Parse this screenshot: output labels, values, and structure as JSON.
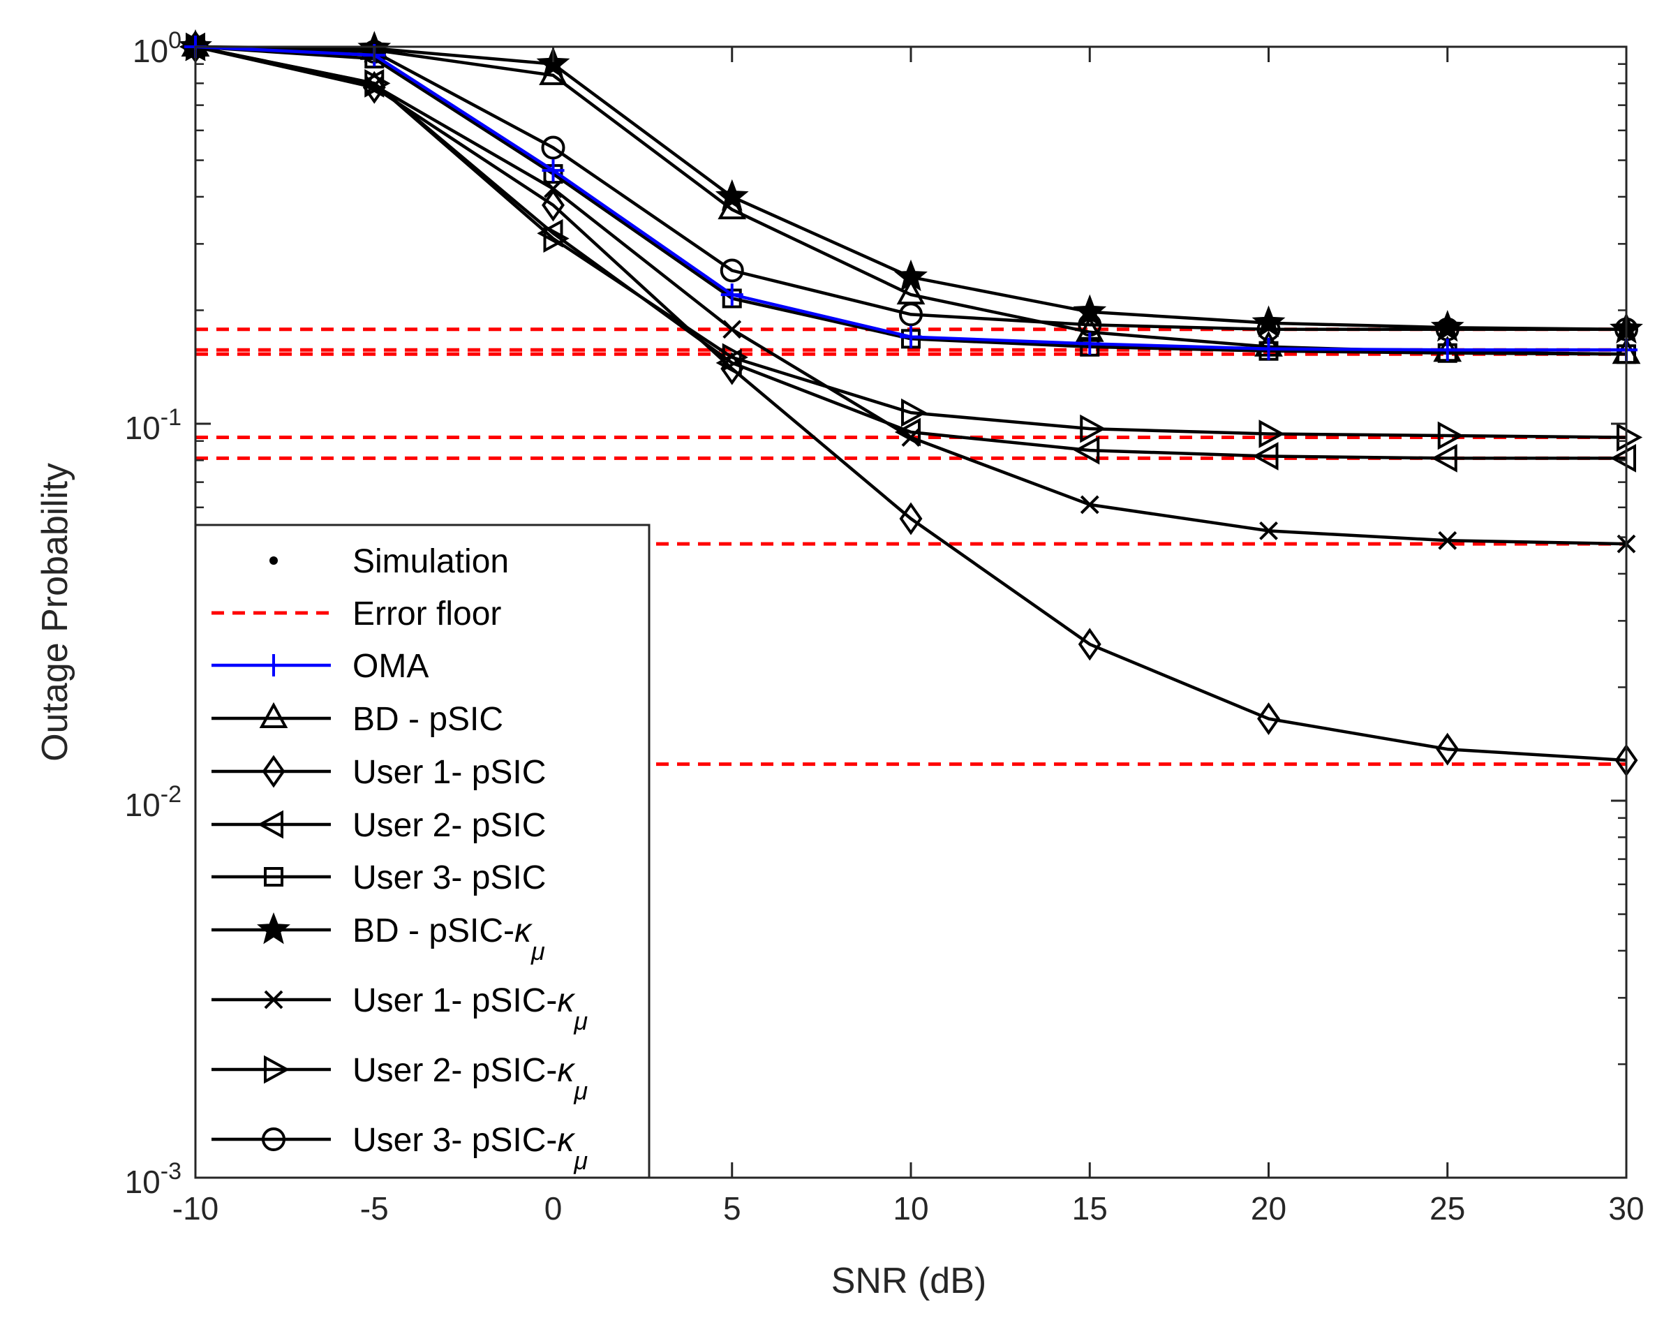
{
  "chart_data": {
    "type": "line",
    "xlabel": "SNR (dB)",
    "ylabel": "Outage Probability",
    "xlim": [
      -10,
      30
    ],
    "ylim": [
      0.001,
      1
    ],
    "yscale": "log",
    "x_ticks": [
      "-10",
      "-5",
      "0",
      "5",
      "10",
      "15",
      "20",
      "25",
      "30"
    ],
    "y_ticks": [
      {
        "base": "10",
        "exp": "0",
        "value": 1
      },
      {
        "base": "10",
        "exp": "-1",
        "value": 0.1
      },
      {
        "base": "10",
        "exp": "-2",
        "value": 0.01
      },
      {
        "base": "10",
        "exp": "-3",
        "value": 0.001
      }
    ],
    "grid": false,
    "legend_position": "bottom-left",
    "x": [
      -10,
      -5,
      0,
      5,
      10,
      15,
      20,
      25,
      30
    ],
    "error_floors": [
      0.178,
      0.157,
      0.153,
      0.092,
      0.081,
      0.048,
      0.0125
    ],
    "series": [
      {
        "name": "OMA",
        "color": "#0000ff",
        "marker": "plus",
        "values": [
          1,
          0.95,
          0.47,
          0.22,
          0.17,
          0.163,
          0.158,
          0.157,
          0.157
        ]
      },
      {
        "name": "BD - pSIC",
        "color": "#000000",
        "marker": "triangle-up",
        "values": [
          1,
          0.98,
          0.84,
          0.37,
          0.22,
          0.175,
          0.16,
          0.155,
          0.153
        ]
      },
      {
        "name": "User 1- pSIC",
        "color": "#000000",
        "marker": "diamond",
        "values": [
          1,
          0.78,
          0.38,
          0.14,
          0.056,
          0.026,
          0.0165,
          0.0137,
          0.0128
        ]
      },
      {
        "name": "User 2- pSIC",
        "color": "#000000",
        "marker": "triangle-left",
        "values": [
          1,
          0.8,
          0.32,
          0.145,
          0.095,
          0.085,
          0.082,
          0.081,
          0.081
        ]
      },
      {
        "name": "User 3- pSIC",
        "color": "#000000",
        "marker": "square",
        "values": [
          1,
          0.93,
          0.46,
          0.215,
          0.168,
          0.16,
          0.156,
          0.154,
          0.153
        ]
      },
      {
        "name": "BD - pSIC-κμ",
        "color": "#000000",
        "marker": "star",
        "values": [
          1,
          0.99,
          0.9,
          0.4,
          0.245,
          0.198,
          0.185,
          0.18,
          0.178
        ]
      },
      {
        "name": "User 1- pSIC-κμ",
        "color": "#000000",
        "marker": "x",
        "values": [
          1,
          0.79,
          0.42,
          0.178,
          0.092,
          0.061,
          0.052,
          0.049,
          0.048
        ]
      },
      {
        "name": "User 2- pSIC-κμ",
        "color": "#000000",
        "marker": "triangle-right",
        "values": [
          1,
          0.8,
          0.31,
          0.15,
          0.107,
          0.097,
          0.094,
          0.093,
          0.092
        ]
      },
      {
        "name": "User 3- pSIC-κμ",
        "color": "#000000",
        "marker": "circle",
        "values": [
          1,
          0.97,
          0.54,
          0.255,
          0.195,
          0.183,
          0.178,
          0.178,
          0.178
        ]
      }
    ],
    "legend": [
      {
        "kind": "dot",
        "parts": [
          {
            "t": "Simulation"
          }
        ]
      },
      {
        "kind": "dash",
        "parts": [
          {
            "t": "Error floor"
          }
        ]
      },
      {
        "kind": "series",
        "series": 0,
        "parts": [
          {
            "t": "OMA"
          }
        ]
      },
      {
        "kind": "series",
        "series": 1,
        "parts": [
          {
            "t": "BD - pSIC"
          }
        ]
      },
      {
        "kind": "series",
        "series": 2,
        "parts": [
          {
            "t": "User 1- pSIC"
          }
        ]
      },
      {
        "kind": "series",
        "series": 3,
        "parts": [
          {
            "t": "User 2- pSIC"
          }
        ]
      },
      {
        "kind": "series",
        "series": 4,
        "parts": [
          {
            "t": "User 3- pSIC"
          }
        ]
      },
      {
        "kind": "series",
        "series": 5,
        "parts": [
          {
            "t": "BD - pSIC-"
          },
          {
            "t": "κ",
            "italic": true
          },
          {
            "t": "μ",
            "italic": true,
            "sub": true
          }
        ]
      },
      {
        "kind": "series",
        "series": 6,
        "parts": [
          {
            "t": "User 1- pSIC-"
          },
          {
            "t": "κ",
            "italic": true
          },
          {
            "t": "μ",
            "italic": true,
            "sub": true
          }
        ]
      },
      {
        "kind": "series",
        "series": 7,
        "parts": [
          {
            "t": "User 2- pSIC-"
          },
          {
            "t": "κ",
            "italic": true
          },
          {
            "t": "μ",
            "italic": true,
            "sub": true
          }
        ]
      },
      {
        "kind": "series",
        "series": 8,
        "parts": [
          {
            "t": "User 3- pSIC-"
          },
          {
            "t": "κ",
            "italic": true
          },
          {
            "t": "μ",
            "italic": true,
            "sub": true
          }
        ]
      }
    ],
    "colors": {
      "floor": "#ff0000",
      "axis": "#262626"
    }
  }
}
